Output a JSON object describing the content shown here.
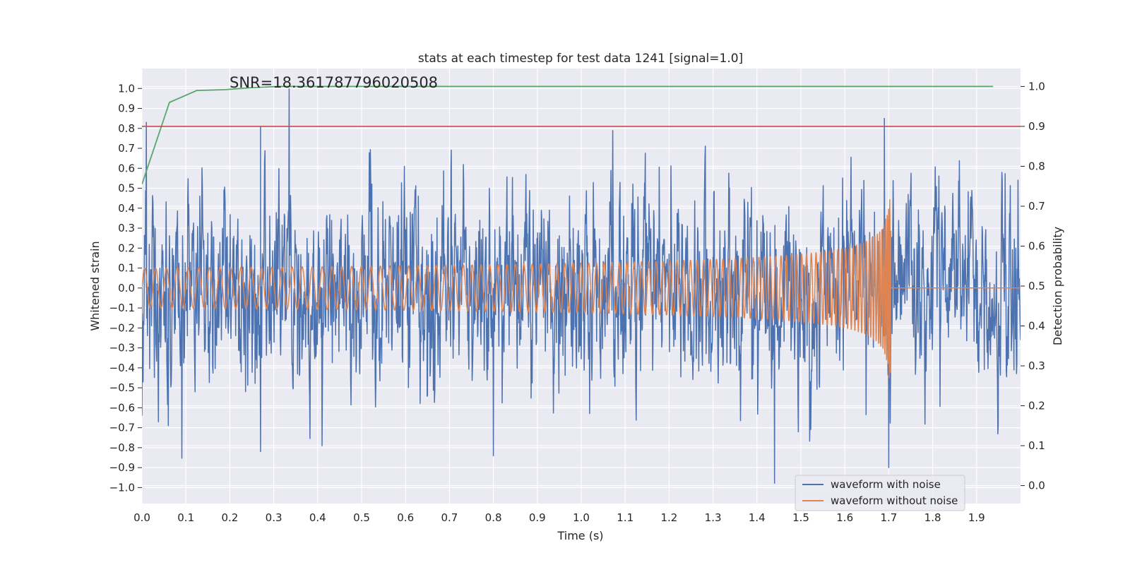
{
  "chart_data": {
    "type": "line",
    "title": "stats at each timestep for test data 1241 [signal=1.0]",
    "xlabel": "Time (s)",
    "ylabel": "Whitened strain",
    "y2label": "Detection probability",
    "xlim": [
      0.0,
      2.0
    ],
    "ylim": [
      -1.08,
      1.1
    ],
    "y2lim": [
      -0.045,
      1.045
    ],
    "x_ticks": [
      "0.0",
      "0.1",
      "0.2",
      "0.3",
      "0.4",
      "0.5",
      "0.6",
      "0.7",
      "0.8",
      "0.9",
      "1.0",
      "1.1",
      "1.2",
      "1.3",
      "1.4",
      "1.5",
      "1.6",
      "1.7",
      "1.8",
      "1.9"
    ],
    "y_ticks": [
      "1.0",
      "0.9",
      "0.8",
      "0.7",
      "0.6",
      "0.5",
      "0.4",
      "0.3",
      "0.2",
      "0.1",
      "0.0",
      "−0.1",
      "−0.2",
      "−0.3",
      "−0.4",
      "−0.5",
      "−0.6",
      "−0.7",
      "−0.8",
      "−0.9",
      "−1.0"
    ],
    "y2_ticks": [
      "1.0",
      "0.9",
      "0.8",
      "0.7",
      "0.6",
      "0.5",
      "0.4",
      "0.3",
      "0.2",
      "0.1",
      "0.0"
    ],
    "grid": true,
    "legend_position": "lower-right",
    "annotation": "SNR=18.361787796020508",
    "threshold": {
      "axis": "right",
      "value": 0.9,
      "color": "#c44e52"
    },
    "series": [
      {
        "name": "waveform with noise",
        "axis": "left",
        "color": "#4c72b0",
        "kind": "noise",
        "x_range": [
          0.0,
          2.0
        ],
        "amplitude_typical": 0.33,
        "notable_extremes": [
          {
            "x": 0.0,
            "y": -0.64
          },
          {
            "x": 0.01,
            "y": 0.83
          },
          {
            "x": 0.06,
            "y": -0.69
          },
          {
            "x": 0.27,
            "y": 0.81
          },
          {
            "x": 0.27,
            "y": -0.82
          },
          {
            "x": 0.335,
            "y": 1.0
          },
          {
            "x": 0.41,
            "y": -0.79
          },
          {
            "x": 0.8,
            "y": -0.84
          },
          {
            "x": 1.44,
            "y": -0.98
          },
          {
            "x": 1.69,
            "y": 0.85
          },
          {
            "x": 1.7,
            "y": -0.9
          }
        ]
      },
      {
        "name": "waveform without noise",
        "axis": "left",
        "color": "#dd8452",
        "kind": "chirp",
        "x_range": [
          0.0,
          2.0
        ],
        "merger_time": 1.705,
        "amplitude_start": 0.1,
        "amplitude_peak": 0.55,
        "amplitude_peak_negative": -0.45
      },
      {
        "name": "",
        "axis": "right",
        "color": "#55a868",
        "kind": "line",
        "x": [
          0.0,
          0.0625,
          0.125,
          0.1875,
          0.25,
          0.3125,
          0.375,
          0.5,
          0.75,
          1.0,
          1.25,
          1.5,
          1.75,
          1.9375
        ],
        "y": [
          0.755,
          0.96,
          0.99,
          0.992,
          0.997,
          1.0,
          1.0,
          1.0,
          1.0,
          1.0,
          1.0,
          1.0,
          1.0,
          1.0
        ]
      }
    ],
    "legend": [
      {
        "label": "waveform with noise",
        "color": "#4c72b0"
      },
      {
        "label": "waveform without noise",
        "color": "#dd8452"
      }
    ]
  }
}
